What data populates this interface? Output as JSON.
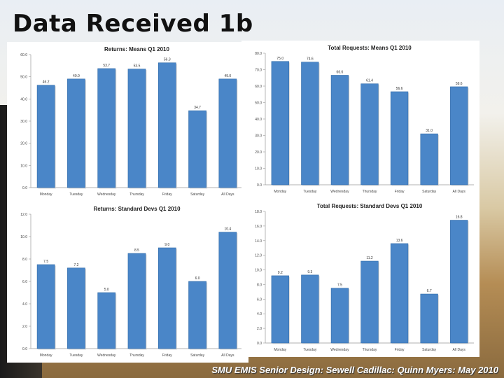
{
  "slide": {
    "title": "Data Received 1b",
    "footer": "SMU EMIS Senior Design:  Sewell Cadillac:  Quinn Myers:  May 2010"
  },
  "chart_data": [
    {
      "type": "bar",
      "title": "Returns:  Means Q1 2010",
      "categories": [
        "Monday",
        "Tuesday",
        "Wednesday",
        "Thursday",
        "Friday",
        "Saturday",
        "All Days"
      ],
      "values": [
        46.2,
        49.0,
        53.7,
        53.5,
        56.3,
        34.7,
        49.0
      ],
      "value_labels": [
        "46.2",
        "49.0",
        "53.7",
        "53.5",
        "56.3",
        "34.7",
        "49.0"
      ],
      "yticks": [
        "0.0",
        "10.0",
        "20.0",
        "30.0",
        "40.0",
        "50.0",
        "60.0"
      ],
      "ylim": [
        0,
        60
      ],
      "grid": false,
      "bar_color": "#4a86c8"
    },
    {
      "type": "bar",
      "title": "Total Requests:  Means Q1 2010",
      "categories": [
        "Monday",
        "Tuesday",
        "Wednesday",
        "Thursday",
        "Friday",
        "Saturday",
        "All Days"
      ],
      "values": [
        75.0,
        74.6,
        66.6,
        61.4,
        56.6,
        31.0,
        59.6
      ],
      "value_labels": [
        "75.0",
        "74.6",
        "66.6",
        "61.4",
        "56.6",
        "31.0",
        "59.6"
      ],
      "yticks": [
        "0.0",
        "10.0",
        "20.0",
        "30.0",
        "40.0",
        "50.0",
        "60.0",
        "70.0",
        "80.0"
      ],
      "ylim": [
        0,
        80
      ],
      "grid": false,
      "bar_color": "#4a86c8"
    },
    {
      "type": "bar",
      "title": "Returns:  Standard Devs Q1 2010",
      "categories": [
        "Monday",
        "Tuesday",
        "Wednesday",
        "Thursday",
        "Friday",
        "Saturday",
        "All Days"
      ],
      "values": [
        7.5,
        7.2,
        5.0,
        8.5,
        9.0,
        6.0,
        10.4
      ],
      "value_labels": [
        "7.5",
        "7.2",
        "5.0",
        "8.5",
        "9.0",
        "6.0",
        "10.4"
      ],
      "yticks": [
        "0.0",
        "2.0",
        "4.0",
        "6.0",
        "8.0",
        "10.0",
        "12.0"
      ],
      "ylim": [
        0,
        12
      ],
      "grid": false,
      "bar_color": "#4a86c8"
    },
    {
      "type": "bar",
      "title": "Total Requests:  Standard Devs Q1 2010",
      "categories": [
        "Monday",
        "Tuesday",
        "Wednesday",
        "Thursday",
        "Friday",
        "Saturday",
        "All Days"
      ],
      "values": [
        9.2,
        9.3,
        7.5,
        11.2,
        13.6,
        6.7,
        16.8
      ],
      "value_labels": [
        "9.2",
        "9.3",
        "7.5",
        "11.2",
        "13.6",
        "6.7",
        "16.8"
      ],
      "yticks": [
        "0.0",
        "2.0",
        "4.0",
        "6.0",
        "8.0",
        "10.0",
        "12.0",
        "14.0",
        "16.0",
        "18.0"
      ],
      "ylim": [
        0,
        18
      ],
      "grid": false,
      "bar_color": "#4a86c8"
    }
  ]
}
